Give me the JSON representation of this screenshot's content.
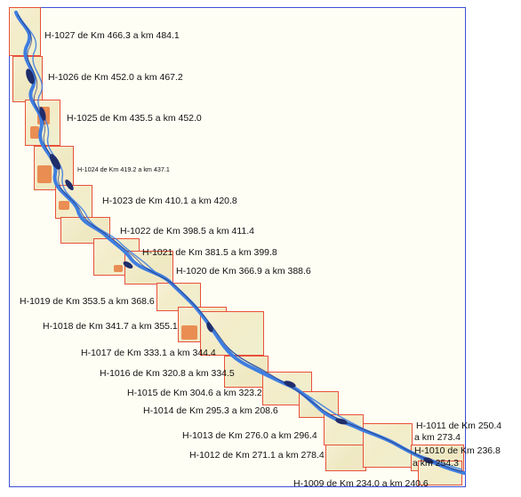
{
  "map": {
    "frame_color": "#3b4fd8",
    "sheet_border_color": "#e8503a",
    "river_color": "#3f7ee0",
    "channel_color": "#1f2d6b",
    "urban_color": "#e87d3e"
  },
  "sheets": [
    {
      "id": "H-1027",
      "label": "H-1027 de Km 466.3 a km 484.1"
    },
    {
      "id": "H-1026",
      "label": "H-1026 de Km 452.0 a km 467.2"
    },
    {
      "id": "H-1025",
      "label": "H-1025 de Km 435.5 a km 452.0"
    },
    {
      "id": "H-1024",
      "label": "H-1024 de Km 419.2 a km 437.1"
    },
    {
      "id": "H-1023",
      "label": "H-1023 de Km 410.1 a km 420.8"
    },
    {
      "id": "H-1022",
      "label": "H-1022 de Km 398.5 a km 411.4"
    },
    {
      "id": "H-1021",
      "label": "H-1021 de Km 381.5 a km 399.8"
    },
    {
      "id": "H-1020",
      "label": "H-1020 de Km 366.9 a km 388.6"
    },
    {
      "id": "H-1019",
      "label": "H-1019 de Km 353.5 a km 368.6"
    },
    {
      "id": "H-1018",
      "label": "H-1018 de Km 341.7 a km 355.1"
    },
    {
      "id": "H-1017",
      "label": "H-1017 de Km 333.1 a km 344.4"
    },
    {
      "id": "H-1016",
      "label": "H-1016 de Km 320.8 a km 334.5"
    },
    {
      "id": "H-1015",
      "label": "H-1015 de Km 304.6 a km 323.2"
    },
    {
      "id": "H-1014",
      "label": "H-1014 de Km 295.3 a km 208.6"
    },
    {
      "id": "H-1013",
      "label": "H-1013 de Km 276.0 a km 296.4"
    },
    {
      "id": "H-1012",
      "label": "H-1012 de Km 271.1 a km 278.4"
    },
    {
      "id": "H-1011",
      "label_line1": "H-1011 de Km 250.4",
      "label_line2": "a km 273.4"
    },
    {
      "id": "H-1010",
      "label_line1": "H-1010 de Km 236.8",
      "label_line2": "a km 254.3"
    },
    {
      "id": "H-1009",
      "label": "H-1009 de Km 234.0 a km 240.6"
    }
  ]
}
